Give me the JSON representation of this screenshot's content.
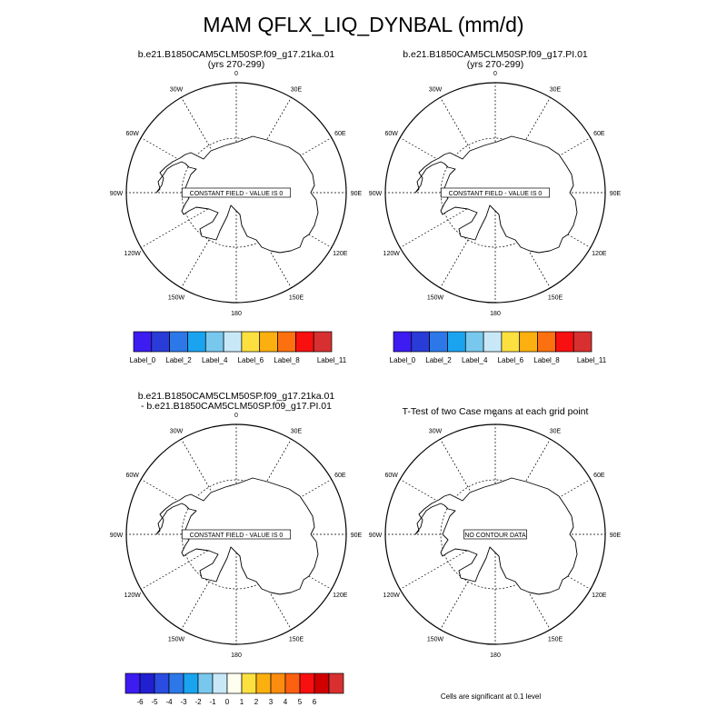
{
  "title": "MAM QFLX_LIQ_DYNBAL (mm/d)",
  "panels": [
    {
      "id": "p1",
      "title_lines": [
        "b.e21.B1850CAM5CLM50SP.f09_g17.21ka.01",
        "(yrs 270-299)"
      ],
      "message": "CONSTANT FIELD - VALUE IS 0"
    },
    {
      "id": "p2",
      "title_lines": [
        "b.e21.B1850CAM5CLM50SP.f09_g17.PI.01",
        "(yrs 270-299)"
      ],
      "message": "CONSTANT FIELD - VALUE IS 0"
    },
    {
      "id": "p3",
      "title_lines": [
        "b.e21.B1850CAM5CLM50SP.f09_g17.21ka.01",
        "- b.e21.B1850CAM5CLM50SP.f09_g17.PI.01"
      ],
      "message": "CONSTANT FIELD - VALUE IS 0"
    },
    {
      "id": "p4",
      "title_lines": [
        "T-Test of two Case means at each grid point"
      ],
      "message": "NO CONTOUR DATA"
    }
  ],
  "longitude_labels": [
    "0",
    "30E",
    "60E",
    "90E",
    "120E",
    "150E",
    "180",
    "150W",
    "120W",
    "90W",
    "60W",
    "30W"
  ],
  "colorbars": [
    {
      "id": "cb1",
      "colors": [
        "#3c1cf0",
        "#2a3cd8",
        "#2c78e8",
        "#1aa4f0",
        "#78c8ee",
        "#c8e8f8",
        "#fce040",
        "#fcb010",
        "#fc7010",
        "#f81010",
        "#d83030"
      ],
      "tick_labels": [
        "Label_0",
        "Label_2",
        "Label_4",
        "Label_6",
        "Label_8",
        "Label_11"
      ]
    },
    {
      "id": "cb2",
      "colors": [
        "#3c1cf0",
        "#2a3cd8",
        "#2c78e8",
        "#1aa4f0",
        "#78c8ee",
        "#c8e8f8",
        "#fce040",
        "#fcb010",
        "#fc7010",
        "#f81010",
        "#d83030"
      ],
      "tick_labels": [
        "Label_0",
        "Label_2",
        "Label_4",
        "Label_6",
        "Label_8",
        "Label_11"
      ]
    },
    {
      "id": "cb3",
      "colors": [
        "#3c1cf0",
        "#2020d0",
        "#2a4ce0",
        "#2c78e8",
        "#1aa4f0",
        "#78c8ee",
        "#c8e8f8",
        "#fffff0",
        "#fce040",
        "#fcb010",
        "#fc8c10",
        "#fc6010",
        "#f81010",
        "#d00000",
        "#d83030"
      ],
      "tick_labels": [
        "-6",
        "-5",
        "-4",
        "-3",
        "-2",
        "-1",
        "0",
        "1",
        "2",
        "3",
        "4",
        "5",
        "6"
      ]
    }
  ],
  "significance_note": "Cells are significant at 0.1 level"
}
